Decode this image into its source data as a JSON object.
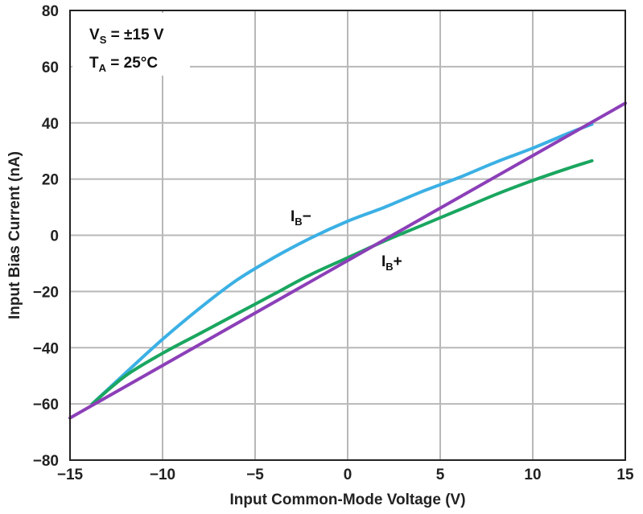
{
  "chart_data": {
    "type": "line",
    "xlabel": "Input Common-Mode Voltage  (V)",
    "ylabel": "Input Bias Current (nA)",
    "xlim": [
      -15,
      15
    ],
    "ylim": [
      -80,
      80
    ],
    "x_ticks": [
      "−15",
      "−10",
      "−5",
      "0",
      "5",
      "10",
      "15"
    ],
    "y_ticks": [
      "80",
      "60",
      "40",
      "20",
      "0",
      "−20",
      "−40",
      "−60",
      "−80"
    ],
    "grid": true,
    "conditions": [
      {
        "main": "V",
        "sub": "S",
        "rest": " = ±15 V"
      },
      {
        "main": "T",
        "sub": "A",
        "rest": " = 25°C"
      }
    ],
    "colors": {
      "ib_minus": "#3bb0e4",
      "ib_plus": "#1aa660",
      "reference": "#8c3fb8",
      "grid": "#b8b8b8",
      "frame": "#222222"
    },
    "series": [
      {
        "key": "ib_minus",
        "label_main": "I",
        "label_sub": "B",
        "label_suffix": "−",
        "x": [
          -13.8,
          -12,
          -10,
          -8,
          -6,
          -4,
          -2,
          0,
          2,
          4,
          6,
          8,
          10,
          12,
          13.2
        ],
        "y": [
          -60,
          -49,
          -37,
          -26,
          -16,
          -8,
          -1,
          5,
          10,
          15.5,
          20.5,
          26,
          31,
          36.5,
          39.5
        ]
      },
      {
        "key": "ib_plus",
        "label_main": "I",
        "label_sub": "B",
        "label_suffix": "+",
        "x": [
          -13.8,
          -12,
          -10,
          -8,
          -6,
          -4,
          -2,
          0,
          2,
          4,
          6,
          8,
          10,
          12,
          13.2
        ],
        "y": [
          -60,
          -50,
          -42,
          -35,
          -28,
          -21,
          -14,
          -8,
          -2,
          3.5,
          9,
          14.5,
          19.5,
          24,
          26.5
        ]
      },
      {
        "key": "reference",
        "x": [
          -15,
          15
        ],
        "y": [
          -65,
          47
        ]
      }
    ]
  }
}
